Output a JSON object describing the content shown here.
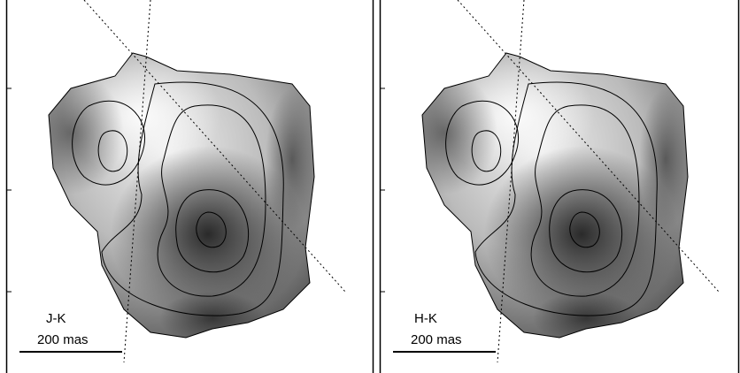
{
  "panels": [
    {
      "label": "J-K",
      "scale": "200 mas"
    },
    {
      "label": "H-K",
      "scale": "200 mas"
    }
  ]
}
